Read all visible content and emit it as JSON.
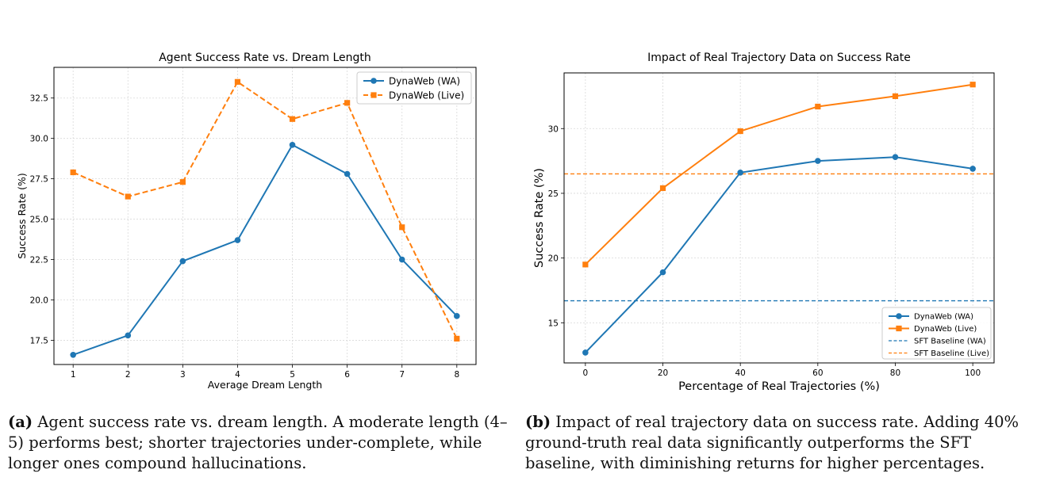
{
  "chart_data": [
    {
      "type": "line",
      "title": "Agent Success Rate vs. Dream Length",
      "xlabel": "Average Dream Length",
      "ylabel": "Success Rate (%)",
      "x": [
        1,
        2,
        3,
        4,
        5,
        6,
        7,
        8
      ],
      "xticks": [
        "1",
        "2",
        "3",
        "4",
        "5",
        "6",
        "7",
        "8"
      ],
      "yticks": [
        "17.5",
        "20.0",
        "22.5",
        "25.0",
        "27.5",
        "30.0",
        "32.5"
      ],
      "xlim": [
        0.65,
        8.35
      ],
      "ylim": [
        16.0,
        34.4
      ],
      "grid": true,
      "legend_position": "top-right",
      "series": [
        {
          "name": "DynaWeb (WA)",
          "color": "#1f77b4",
          "style": "solid",
          "marker": "circle",
          "values": [
            16.6,
            17.8,
            22.4,
            23.7,
            29.6,
            27.8,
            22.5,
            19.0
          ]
        },
        {
          "name": "DynaWeb (Live)",
          "color": "#ff7f0e",
          "style": "dashed",
          "marker": "square",
          "values": [
            27.9,
            26.4,
            27.3,
            33.5,
            31.2,
            32.2,
            24.5,
            17.6
          ]
        }
      ]
    },
    {
      "type": "line",
      "title": "Impact of Real Trajectory Data on Success Rate",
      "xlabel": "Percentage of Real Trajectories (%)",
      "ylabel": "Success Rate (%)",
      "x": [
        0,
        20,
        40,
        60,
        80,
        100
      ],
      "xticks": [
        "0",
        "20",
        "40",
        "60",
        "80",
        "100"
      ],
      "yticks": [
        "15",
        "20",
        "25",
        "30"
      ],
      "xlim": [
        -5.5,
        105.5
      ],
      "ylim": [
        11.9,
        34.3
      ],
      "grid": true,
      "legend_position": "bottom-right",
      "series": [
        {
          "name": "DynaWeb (WA)",
          "color": "#1f77b4",
          "style": "solid",
          "marker": "circle",
          "values": [
            12.7,
            18.9,
            26.6,
            27.5,
            27.8,
            26.9
          ]
        },
        {
          "name": "DynaWeb (Live)",
          "color": "#ff7f0e",
          "style": "solid",
          "marker": "square",
          "values": [
            19.5,
            25.4,
            29.8,
            31.7,
            32.5,
            33.4
          ]
        }
      ],
      "baselines": [
        {
          "name": "SFT Baseline (WA)",
          "color": "#1f77b4",
          "value": 16.7
        },
        {
          "name": "SFT Baseline (Live)",
          "color": "#ff7f0e",
          "value": 26.5
        }
      ]
    }
  ],
  "captions": {
    "a": {
      "label": "(a)",
      "text": " Agent success rate vs. dream length. A moderate length (4–5) performs best; shorter trajectories under-complete, while longer ones compound hallucinations."
    },
    "b": {
      "label": "(b)",
      "text": " Impact of real trajectory data on success rate.  Adding 40% ground-truth real data significantly outperforms the SFT baseline, with diminishing returns for higher percentages."
    }
  }
}
